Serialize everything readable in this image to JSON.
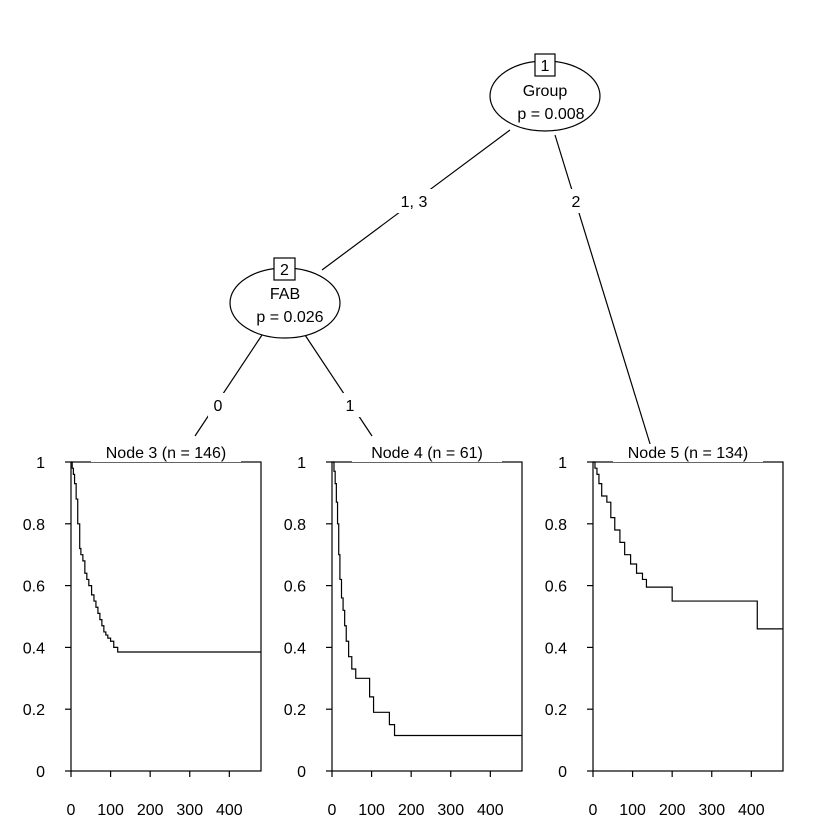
{
  "tree": {
    "inner_nodes": [
      {
        "id": "1",
        "variable": "Group",
        "pvalue": "p = 0.008"
      },
      {
        "id": "2",
        "variable": "FAB",
        "pvalue": "p = 0.026"
      }
    ],
    "edges": [
      {
        "from": "1",
        "to": "2",
        "label": "1, 3"
      },
      {
        "from": "1",
        "to": "5",
        "label": "2"
      },
      {
        "from": "2",
        "to": "3",
        "label": "0"
      },
      {
        "from": "2",
        "to": "4",
        "label": "1"
      }
    ]
  },
  "chart_data": [
    {
      "type": "line",
      "step": true,
      "title": "Node 3 (n = 146)",
      "xlim": [
        0,
        480
      ],
      "ylim": [
        0,
        1
      ],
      "x_ticks": [
        0,
        100,
        200,
        300,
        400
      ],
      "x_tick_labels": [
        "0",
        "100",
        "200",
        "300",
        "400"
      ],
      "y_ticks": [
        0,
        0.2,
        0.4,
        0.6,
        0.8,
        1
      ],
      "y_tick_labels": [
        "0",
        "0.2",
        "0.4",
        "0.6",
        "0.8",
        "1"
      ],
      "x": [
        0,
        3,
        6,
        9,
        13,
        17,
        22,
        25,
        30,
        35,
        40,
        45,
        52,
        58,
        63,
        68,
        73,
        78,
        83,
        88,
        93,
        100,
        108,
        118,
        480
      ],
      "y": [
        1.0,
        0.98,
        0.96,
        0.93,
        0.88,
        0.8,
        0.72,
        0.7,
        0.68,
        0.64,
        0.62,
        0.6,
        0.57,
        0.55,
        0.53,
        0.51,
        0.49,
        0.47,
        0.45,
        0.44,
        0.43,
        0.42,
        0.4,
        0.385,
        0.385
      ]
    },
    {
      "type": "line",
      "step": true,
      "title": "Node 4 (n = 61)",
      "xlim": [
        0,
        480
      ],
      "ylim": [
        0,
        1
      ],
      "x_ticks": [
        0,
        100,
        200,
        300,
        400
      ],
      "x_tick_labels": [
        "0",
        "100",
        "200",
        "300",
        "400"
      ],
      "y_ticks": [
        0,
        0.2,
        0.4,
        0.6,
        0.8,
        1
      ],
      "y_tick_labels": [
        "0",
        "0.2",
        "0.4",
        "0.6",
        "0.8",
        "1"
      ],
      "x": [
        0,
        5,
        8,
        11,
        14,
        17,
        20,
        24,
        28,
        32,
        36,
        42,
        50,
        60,
        75,
        95,
        105,
        145,
        158,
        480
      ],
      "y": [
        1.0,
        0.97,
        0.93,
        0.87,
        0.8,
        0.7,
        0.62,
        0.56,
        0.52,
        0.47,
        0.42,
        0.37,
        0.33,
        0.3,
        0.3,
        0.24,
        0.19,
        0.15,
        0.115,
        0.115
      ]
    },
    {
      "type": "line",
      "step": true,
      "title": "Node 5 (n = 134)",
      "xlim": [
        0,
        480
      ],
      "ylim": [
        0,
        1
      ],
      "x_ticks": [
        0,
        100,
        200,
        300,
        400
      ],
      "x_tick_labels": [
        "0",
        "100",
        "200",
        "300",
        "400"
      ],
      "y_ticks": [
        0,
        0.2,
        0.4,
        0.6,
        0.8,
        1
      ],
      "y_tick_labels": [
        "0",
        "0.2",
        "0.4",
        "0.6",
        "0.8",
        "1"
      ],
      "x": [
        0,
        5,
        10,
        15,
        22,
        35,
        45,
        55,
        68,
        80,
        95,
        110,
        125,
        135,
        200,
        415,
        480
      ],
      "y": [
        1.0,
        0.98,
        0.96,
        0.93,
        0.89,
        0.87,
        0.82,
        0.78,
        0.74,
        0.7,
        0.67,
        0.64,
        0.62,
        0.595,
        0.55,
        0.46,
        0.46
      ]
    }
  ]
}
